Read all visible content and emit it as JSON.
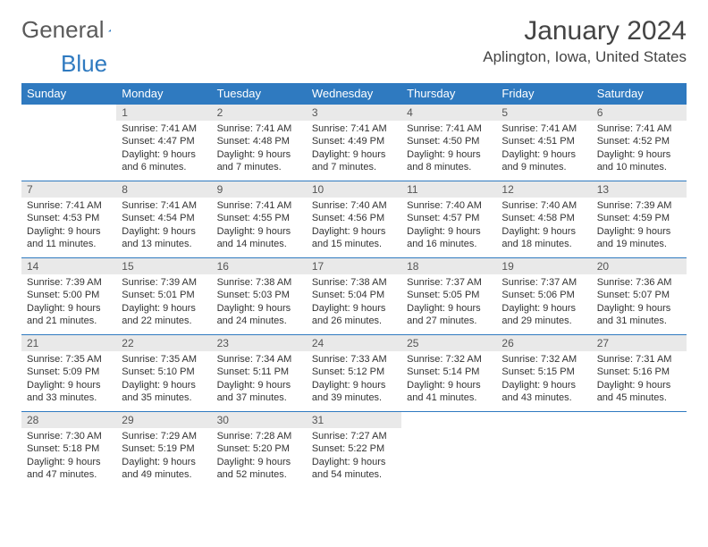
{
  "logo": {
    "text1": "General",
    "text2": "Blue",
    "triangle_color": "#2f7ac0"
  },
  "title": "January 2024",
  "location": "Aplington, Iowa, United States",
  "colors": {
    "header_bg": "#2f7ac0",
    "daynum_bg": "#e9e9e9",
    "rule": "#2f7ac0"
  },
  "weekdays": [
    "Sunday",
    "Monday",
    "Tuesday",
    "Wednesday",
    "Thursday",
    "Friday",
    "Saturday"
  ],
  "start_offset": 1,
  "days": [
    {
      "n": "1",
      "sunrise": "7:41 AM",
      "sunset": "4:47 PM",
      "daylight": "9 hours and 6 minutes."
    },
    {
      "n": "2",
      "sunrise": "7:41 AM",
      "sunset": "4:48 PM",
      "daylight": "9 hours and 7 minutes."
    },
    {
      "n": "3",
      "sunrise": "7:41 AM",
      "sunset": "4:49 PM",
      "daylight": "9 hours and 7 minutes."
    },
    {
      "n": "4",
      "sunrise": "7:41 AM",
      "sunset": "4:50 PM",
      "daylight": "9 hours and 8 minutes."
    },
    {
      "n": "5",
      "sunrise": "7:41 AM",
      "sunset": "4:51 PM",
      "daylight": "9 hours and 9 minutes."
    },
    {
      "n": "6",
      "sunrise": "7:41 AM",
      "sunset": "4:52 PM",
      "daylight": "9 hours and 10 minutes."
    },
    {
      "n": "7",
      "sunrise": "7:41 AM",
      "sunset": "4:53 PM",
      "daylight": "9 hours and 11 minutes."
    },
    {
      "n": "8",
      "sunrise": "7:41 AM",
      "sunset": "4:54 PM",
      "daylight": "9 hours and 13 minutes."
    },
    {
      "n": "9",
      "sunrise": "7:41 AM",
      "sunset": "4:55 PM",
      "daylight": "9 hours and 14 minutes."
    },
    {
      "n": "10",
      "sunrise": "7:40 AM",
      "sunset": "4:56 PM",
      "daylight": "9 hours and 15 minutes."
    },
    {
      "n": "11",
      "sunrise": "7:40 AM",
      "sunset": "4:57 PM",
      "daylight": "9 hours and 16 minutes."
    },
    {
      "n": "12",
      "sunrise": "7:40 AM",
      "sunset": "4:58 PM",
      "daylight": "9 hours and 18 minutes."
    },
    {
      "n": "13",
      "sunrise": "7:39 AM",
      "sunset": "4:59 PM",
      "daylight": "9 hours and 19 minutes."
    },
    {
      "n": "14",
      "sunrise": "7:39 AM",
      "sunset": "5:00 PM",
      "daylight": "9 hours and 21 minutes."
    },
    {
      "n": "15",
      "sunrise": "7:39 AM",
      "sunset": "5:01 PM",
      "daylight": "9 hours and 22 minutes."
    },
    {
      "n": "16",
      "sunrise": "7:38 AM",
      "sunset": "5:03 PM",
      "daylight": "9 hours and 24 minutes."
    },
    {
      "n": "17",
      "sunrise": "7:38 AM",
      "sunset": "5:04 PM",
      "daylight": "9 hours and 26 minutes."
    },
    {
      "n": "18",
      "sunrise": "7:37 AM",
      "sunset": "5:05 PM",
      "daylight": "9 hours and 27 minutes."
    },
    {
      "n": "19",
      "sunrise": "7:37 AM",
      "sunset": "5:06 PM",
      "daylight": "9 hours and 29 minutes."
    },
    {
      "n": "20",
      "sunrise": "7:36 AM",
      "sunset": "5:07 PM",
      "daylight": "9 hours and 31 minutes."
    },
    {
      "n": "21",
      "sunrise": "7:35 AM",
      "sunset": "5:09 PM",
      "daylight": "9 hours and 33 minutes."
    },
    {
      "n": "22",
      "sunrise": "7:35 AM",
      "sunset": "5:10 PM",
      "daylight": "9 hours and 35 minutes."
    },
    {
      "n": "23",
      "sunrise": "7:34 AM",
      "sunset": "5:11 PM",
      "daylight": "9 hours and 37 minutes."
    },
    {
      "n": "24",
      "sunrise": "7:33 AM",
      "sunset": "5:12 PM",
      "daylight": "9 hours and 39 minutes."
    },
    {
      "n": "25",
      "sunrise": "7:32 AM",
      "sunset": "5:14 PM",
      "daylight": "9 hours and 41 minutes."
    },
    {
      "n": "26",
      "sunrise": "7:32 AM",
      "sunset": "5:15 PM",
      "daylight": "9 hours and 43 minutes."
    },
    {
      "n": "27",
      "sunrise": "7:31 AM",
      "sunset": "5:16 PM",
      "daylight": "9 hours and 45 minutes."
    },
    {
      "n": "28",
      "sunrise": "7:30 AM",
      "sunset": "5:18 PM",
      "daylight": "9 hours and 47 minutes."
    },
    {
      "n": "29",
      "sunrise": "7:29 AM",
      "sunset": "5:19 PM",
      "daylight": "9 hours and 49 minutes."
    },
    {
      "n": "30",
      "sunrise": "7:28 AM",
      "sunset": "5:20 PM",
      "daylight": "9 hours and 52 minutes."
    },
    {
      "n": "31",
      "sunrise": "7:27 AM",
      "sunset": "5:22 PM",
      "daylight": "9 hours and 54 minutes."
    }
  ],
  "labels": {
    "sunrise": "Sunrise:",
    "sunset": "Sunset:",
    "daylight": "Daylight:"
  }
}
